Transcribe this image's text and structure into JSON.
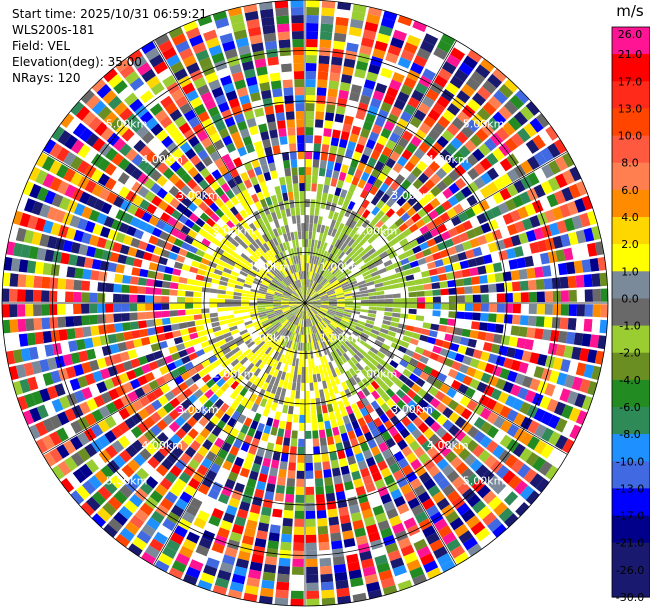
{
  "header": {
    "start_time": "Start time: 2025/10/31 06:59:21",
    "site": "WLS200s-181",
    "field": "Field: VEL",
    "elevation": "Elevation(deg): 35.00",
    "nrays": "NRays: 120"
  },
  "chart_data": {
    "type": "ppi",
    "field": "VEL",
    "units": "m/s",
    "elevation_deg": 35.0,
    "n_rays": 120,
    "max_range_km": 6.0,
    "range_rings_km": [
      1,
      2,
      3,
      4,
      5,
      6
    ],
    "range_ring_labels": [
      "1.00km",
      "2.00km",
      "3.00km",
      "4.00km",
      "5.00km",
      "6.00km"
    ],
    "azimuth_spokes_deg": [
      0,
      30,
      60,
      90,
      120,
      150,
      180,
      210,
      240,
      270,
      300,
      330
    ],
    "colorbar": {
      "unit_label": "m/s",
      "bounds": [
        26.0,
        21.0,
        17.0,
        13.0,
        10.0,
        8.0,
        6.0,
        4.0,
        2.0,
        1.0,
        0.0,
        -1.0,
        -2.0,
        -4.0,
        -6.0,
        -8.0,
        -10.0,
        -13.0,
        -17.0,
        -21.0,
        -26.0,
        -30.0
      ],
      "tick_labels": [
        "26.0",
        "21.0",
        "17.0",
        "13.0",
        "10.0",
        "8.0",
        "6.0",
        "4.0",
        "2.0",
        "1.0",
        "0.0",
        "-1.0",
        "-2.0",
        "-4.0",
        "-6.0",
        "-8.0",
        "-10.0",
        "-13.0",
        "-17.0",
        "-21.0",
        "-26.0",
        "-30.0"
      ],
      "colors": [
        "#ff1493",
        "#ff0000",
        "#ff2a1a",
        "#ff4500",
        "#ff5a40",
        "#ff7f50",
        "#ff8c00",
        "#ffd700",
        "#ffff00",
        "#7a8a9a",
        "#696969",
        "#9acd32",
        "#6b8e23",
        "#228b22",
        "#2e8b57",
        "#1e90ff",
        "#4169e1",
        "#0000ff",
        "#00008b",
        "#191970",
        "#191970"
      ]
    },
    "colors": {
      "near_positive": "#ffff00",
      "near_zero": "#808080",
      "near_negative": "#9acd32"
    }
  }
}
